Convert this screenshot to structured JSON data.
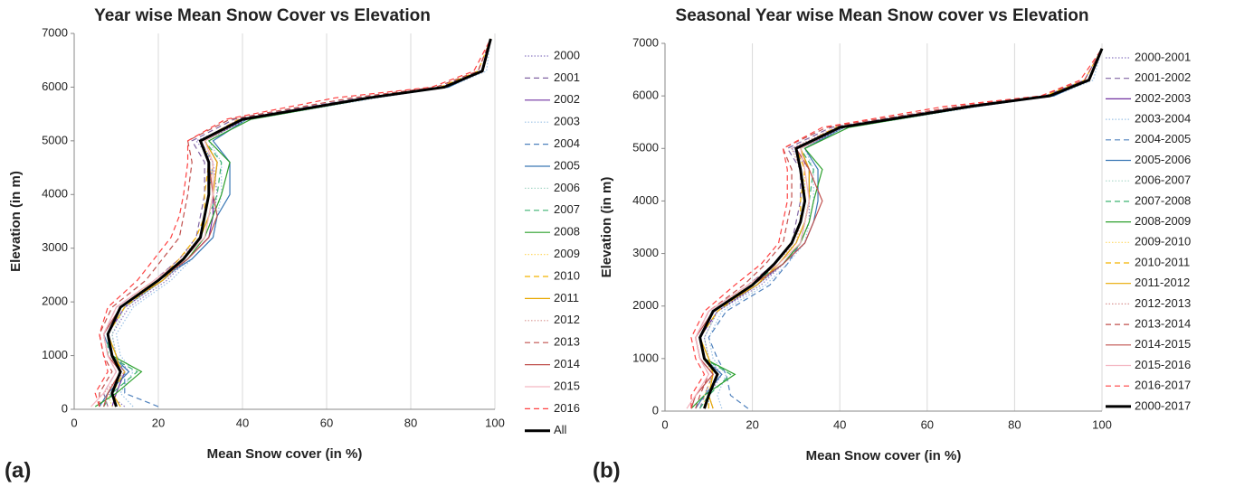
{
  "chart_data": [
    {
      "type": "line",
      "title": "Year wise Mean Snow Cover vs Elevation",
      "panel_label": "(a)",
      "x_label": "Mean Snow cover (in %)",
      "y_label": "Elevation (in m)",
      "xlim": [
        0,
        100
      ],
      "xticks": [
        0,
        20,
        40,
        60,
        80,
        100
      ],
      "ylim": [
        0,
        7000
      ],
      "yticks": [
        0,
        1000,
        2000,
        3000,
        4000,
        5000,
        6000,
        7000
      ],
      "grid": "x",
      "y": [
        50,
        300,
        700,
        1000,
        1400,
        1900,
        2400,
        2800,
        3200,
        3600,
        4000,
        4600,
        5000,
        5400,
        5800,
        6000,
        6300,
        6900
      ],
      "series": [
        {
          "name": "2000",
          "color": "#8e7cc3",
          "style": "dotted",
          "values": [
            12,
            8,
            13,
            10,
            9,
            13,
            22,
            27,
            31,
            33,
            34,
            33,
            29,
            41,
            71,
            89,
            97,
            99
          ]
        },
        {
          "name": "2001",
          "color": "#8064a2",
          "style": "dashed",
          "values": [
            8,
            7,
            10,
            8,
            7,
            10,
            19,
            25,
            29,
            30,
            31,
            31,
            28,
            38,
            68,
            87,
            96,
            99
          ]
        },
        {
          "name": "2002",
          "color": "#7030a0",
          "style": "solid",
          "values": [
            9,
            10,
            12,
            9,
            8,
            12,
            21,
            27,
            32,
            33,
            33,
            34,
            31,
            41,
            70,
            88,
            97,
            99
          ]
        },
        {
          "name": "2003",
          "color": "#9dc3e6",
          "style": "dotted",
          "values": [
            14,
            11,
            14,
            11,
            10,
            14,
            23,
            28,
            33,
            34,
            35,
            35,
            32,
            42,
            72,
            89,
            98,
            99
          ]
        },
        {
          "name": "2004",
          "color": "#4f81bd",
          "style": "dashed",
          "values": [
            20,
            12,
            12,
            10,
            8,
            12,
            21,
            26,
            30,
            31,
            32,
            33,
            30,
            40,
            69,
            88,
            97,
            99
          ]
        },
        {
          "name": "2005",
          "color": "#3a78b5",
          "style": "solid",
          "values": [
            6,
            8,
            13,
            9,
            7,
            11,
            20,
            28,
            33,
            34,
            37,
            37,
            33,
            41,
            71,
            89,
            97,
            99
          ]
        },
        {
          "name": "2006",
          "color": "#a9d8c8",
          "style": "dotted",
          "values": [
            11,
            9,
            12,
            10,
            9,
            12,
            21,
            27,
            31,
            32,
            33,
            34,
            31,
            41,
            70,
            88,
            97,
            99
          ]
        },
        {
          "name": "2007",
          "color": "#3cb371",
          "style": "dashed",
          "values": [
            7,
            9,
            15,
            8,
            8,
            11,
            20,
            26,
            30,
            32,
            34,
            35,
            31,
            40,
            70,
            88,
            97,
            99
          ]
        },
        {
          "name": "2008",
          "color": "#2ca02c",
          "style": "solid",
          "values": [
            5,
            10,
            16,
            9,
            8,
            11,
            20,
            27,
            31,
            33,
            35,
            37,
            32,
            42,
            71,
            88,
            97,
            99
          ]
        },
        {
          "name": "2009",
          "color": "#ffd966",
          "style": "dotted",
          "values": [
            9,
            8,
            11,
            9,
            8,
            11,
            19,
            26,
            30,
            31,
            32,
            33,
            30,
            40,
            69,
            88,
            97,
            99
          ]
        },
        {
          "name": "2010",
          "color": "#f4b400",
          "style": "dashed",
          "values": [
            10,
            9,
            12,
            9,
            8,
            12,
            20,
            25,
            29,
            31,
            31,
            32,
            30,
            39,
            69,
            87,
            96,
            99
          ]
        },
        {
          "name": "2011",
          "color": "#e8a800",
          "style": "solid",
          "values": [
            11,
            9,
            11,
            10,
            8,
            11,
            21,
            26,
            30,
            32,
            33,
            34,
            31,
            40,
            70,
            88,
            97,
            99
          ]
        },
        {
          "name": "2012",
          "color": "#d99694",
          "style": "dotted",
          "values": [
            8,
            7,
            12,
            8,
            7,
            10,
            19,
            25,
            30,
            31,
            32,
            32,
            30,
            39,
            69,
            88,
            97,
            99
          ]
        },
        {
          "name": "2013",
          "color": "#c0504d",
          "style": "dashed",
          "values": [
            6,
            6,
            9,
            7,
            6,
            9,
            17,
            21,
            25,
            26,
            27,
            28,
            27,
            37,
            66,
            86,
            96,
            99
          ]
        },
        {
          "name": "2014",
          "color": "#c0504d",
          "style": "solid",
          "values": [
            7,
            8,
            11,
            8,
            7,
            11,
            20,
            27,
            32,
            34,
            33,
            32,
            30,
            40,
            70,
            88,
            97,
            99
          ]
        },
        {
          "name": "2015",
          "color": "#f4b6c2",
          "style": "solid",
          "values": [
            4,
            7,
            10,
            8,
            7,
            10,
            19,
            26,
            31,
            32,
            33,
            33,
            31,
            40,
            70,
            88,
            97,
            99
          ]
        },
        {
          "name": "2016",
          "color": "#ff4040",
          "style": "dashed",
          "values": [
            6,
            5,
            8,
            7,
            6,
            8,
            15,
            19,
            23,
            25,
            26,
            27,
            27,
            36,
            62,
            85,
            95,
            99
          ]
        },
        {
          "name": "All",
          "color": "#000000",
          "style": "bold",
          "values": [
            10,
            9,
            11,
            9,
            8,
            11,
            20,
            26,
            30,
            31,
            32,
            32,
            30,
            40,
            70,
            88,
            97,
            99
          ]
        }
      ]
    },
    {
      "type": "line",
      "title": "Seasonal Year wise Mean Snow cover vs Elevation",
      "panel_label": "(b)",
      "x_label": "Mean Snow cover (in %)",
      "y_label": "Elevation (in m)",
      "xlim": [
        0,
        100
      ],
      "xticks": [
        0,
        20,
        40,
        60,
        80,
        100
      ],
      "ylim": [
        0,
        7000
      ],
      "yticks": [
        0,
        1000,
        2000,
        3000,
        4000,
        5000,
        6000,
        7000
      ],
      "grid": "x",
      "y": [
        50,
        300,
        700,
        1000,
        1400,
        1900,
        2400,
        2800,
        3200,
        3600,
        4000,
        4600,
        5000,
        5400,
        5800,
        6000,
        6300,
        6900
      ],
      "series": [
        {
          "name": "2000-2001",
          "color": "#8e7cc3",
          "style": "dotted",
          "values": [
            11,
            10,
            13,
            10,
            9,
            12,
            22,
            27,
            31,
            33,
            33,
            33,
            29,
            41,
            71,
            89,
            97,
            100
          ]
        },
        {
          "name": "2001-2002",
          "color": "#8064a2",
          "style": "dashed",
          "values": [
            8,
            9,
            11,
            8,
            7,
            10,
            19,
            25,
            29,
            30,
            31,
            31,
            28,
            38,
            68,
            87,
            96,
            100
          ]
        },
        {
          "name": "2002-2003",
          "color": "#7030a0",
          "style": "solid",
          "values": [
            9,
            10,
            12,
            9,
            8,
            12,
            21,
            27,
            31,
            32,
            33,
            33,
            31,
            41,
            70,
            88,
            97,
            100
          ]
        },
        {
          "name": "2003-2004",
          "color": "#9dc3e6",
          "style": "dotted",
          "values": [
            13,
            12,
            14,
            11,
            10,
            13,
            23,
            28,
            32,
            33,
            34,
            34,
            32,
            42,
            72,
            89,
            98,
            100
          ]
        },
        {
          "name": "2004-2005",
          "color": "#4f81bd",
          "style": "dashed",
          "values": [
            19,
            15,
            14,
            12,
            10,
            14,
            24,
            28,
            31,
            32,
            33,
            33,
            30,
            40,
            69,
            88,
            97,
            100
          ]
        },
        {
          "name": "2005-2006",
          "color": "#3a78b5",
          "style": "solid",
          "values": [
            7,
            9,
            13,
            9,
            8,
            11,
            20,
            27,
            32,
            34,
            35,
            35,
            32,
            41,
            71,
            89,
            97,
            100
          ]
        },
        {
          "name": "2006-2007",
          "color": "#a9d8c8",
          "style": "dotted",
          "values": [
            10,
            10,
            12,
            10,
            9,
            12,
            21,
            27,
            31,
            32,
            33,
            33,
            31,
            41,
            70,
            88,
            97,
            100
          ]
        },
        {
          "name": "2007-2008",
          "color": "#3cb371",
          "style": "dashed",
          "values": [
            8,
            10,
            15,
            9,
            8,
            11,
            20,
            26,
            30,
            32,
            33,
            34,
            31,
            40,
            70,
            88,
            97,
            100
          ]
        },
        {
          "name": "2008-2009",
          "color": "#2ca02c",
          "style": "solid",
          "values": [
            6,
            9,
            16,
            9,
            8,
            11,
            20,
            27,
            31,
            33,
            34,
            36,
            32,
            42,
            71,
            88,
            97,
            100
          ]
        },
        {
          "name": "2009-2010",
          "color": "#ffd966",
          "style": "dotted",
          "values": [
            9,
            9,
            11,
            9,
            8,
            11,
            19,
            26,
            30,
            31,
            32,
            32,
            30,
            40,
            69,
            88,
            97,
            100
          ]
        },
        {
          "name": "2010-2011",
          "color": "#f4b400",
          "style": "dashed",
          "values": [
            10,
            10,
            12,
            9,
            8,
            12,
            20,
            25,
            29,
            31,
            31,
            32,
            30,
            39,
            69,
            87,
            96,
            100
          ]
        },
        {
          "name": "2011-2012",
          "color": "#e8a800",
          "style": "solid",
          "values": [
            11,
            10,
            11,
            10,
            8,
            11,
            21,
            26,
            30,
            32,
            33,
            33,
            31,
            40,
            70,
            88,
            97,
            100
          ]
        },
        {
          "name": "2012-2013",
          "color": "#d99694",
          "style": "dotted",
          "values": [
            5,
            7,
            11,
            8,
            7,
            10,
            19,
            25,
            30,
            31,
            32,
            31,
            29,
            39,
            69,
            88,
            97,
            100
          ]
        },
        {
          "name": "2013-2014",
          "color": "#c0504d",
          "style": "dashed",
          "values": [
            7,
            8,
            10,
            8,
            7,
            10,
            18,
            23,
            27,
            28,
            29,
            29,
            27,
            37,
            67,
            86,
            96,
            100
          ]
        },
        {
          "name": "2014-2015",
          "color": "#c0504d",
          "style": "solid",
          "values": [
            6,
            7,
            11,
            8,
            7,
            11,
            20,
            27,
            32,
            34,
            36,
            33,
            30,
            40,
            70,
            88,
            97,
            100
          ]
        },
        {
          "name": "2015-2016",
          "color": "#f4b6c2",
          "style": "solid",
          "values": [
            5,
            7,
            10,
            8,
            7,
            10,
            19,
            26,
            31,
            32,
            33,
            32,
            31,
            40,
            70,
            88,
            97,
            100
          ]
        },
        {
          "name": "2016-2017",
          "color": "#ff4040",
          "style": "dashed",
          "values": [
            6,
            6,
            9,
            7,
            6,
            9,
            16,
            22,
            26,
            27,
            28,
            28,
            27,
            36,
            64,
            86,
            95,
            100
          ]
        },
        {
          "name": "2000-2017",
          "color": "#000000",
          "style": "bold",
          "values": [
            9,
            10,
            12,
            9,
            8,
            11,
            20,
            25,
            29,
            31,
            32,
            31,
            30,
            40,
            70,
            88,
            97,
            100
          ]
        }
      ]
    }
  ]
}
